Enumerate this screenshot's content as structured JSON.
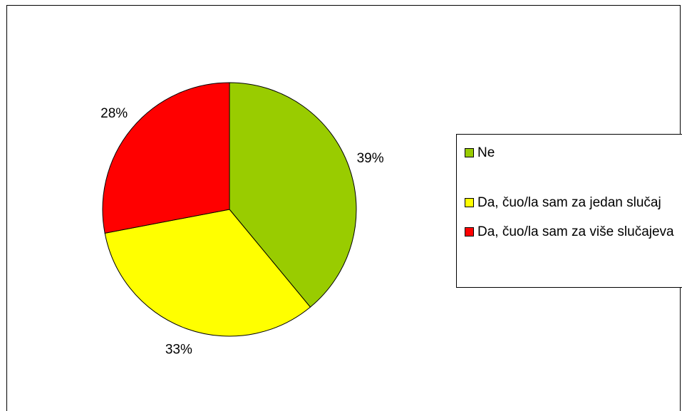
{
  "chart_data": {
    "type": "pie",
    "categories": [
      "Ne",
      "Da, čuo/la sam za jedan slučaj",
      "Da, čuo/la sam za više slučajeva"
    ],
    "values": [
      39,
      33,
      28
    ],
    "value_labels": [
      "39%",
      "33%",
      "28%"
    ],
    "colors": [
      "#99cc00",
      "#ffff00",
      "#ff0000"
    ],
    "legend": "right"
  }
}
